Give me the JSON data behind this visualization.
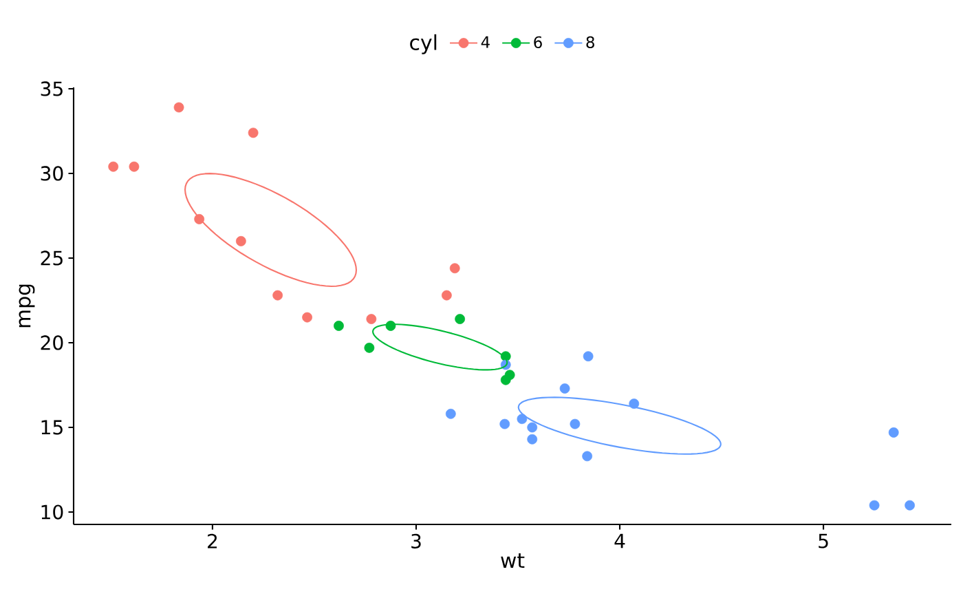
{
  "chart_data": {
    "type": "scatter",
    "xlabel": "wt",
    "ylabel": "mpg",
    "legend_title": "cyl",
    "legend": "top",
    "marker": "circle",
    "grid": false,
    "xlim": [
      1.318,
      5.628
    ],
    "ylim": [
      9.27,
      35.08
    ],
    "xticks": [
      2,
      3,
      4,
      5
    ],
    "yticks": [
      10,
      15,
      20,
      25,
      30,
      35
    ],
    "series": [
      {
        "name": "4",
        "color": "#f8766d",
        "x": [
          2.32,
          3.19,
          3.15,
          2.2,
          1.615,
          1.835,
          2.465,
          1.935,
          2.14,
          1.513,
          2.78
        ],
        "values": [
          22.8,
          24.4,
          22.8,
          32.4,
          30.4,
          33.9,
          21.5,
          27.3,
          26.0,
          30.4,
          21.4
        ]
      },
      {
        "name": "6",
        "color": "#00ba38",
        "x": [
          2.62,
          2.875,
          3.215,
          3.46,
          3.44,
          3.44,
          2.77
        ],
        "values": [
          21.0,
          21.0,
          21.4,
          18.1,
          19.2,
          17.8,
          19.7
        ]
      },
      {
        "name": "8",
        "color": "#619cff",
        "x": [
          3.44,
          3.57,
          4.07,
          3.73,
          3.78,
          5.25,
          5.424,
          5.345,
          3.52,
          3.435,
          3.84,
          3.845,
          3.17,
          3.57
        ],
        "values": [
          18.7,
          14.3,
          16.4,
          17.3,
          15.2,
          10.4,
          10.4,
          14.7,
          15.5,
          15.2,
          13.3,
          19.2,
          15.8,
          15.0
        ]
      }
    ]
  }
}
